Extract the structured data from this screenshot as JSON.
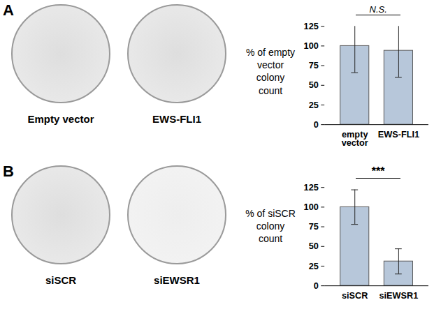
{
  "chart_data": [
    {
      "type": "bar",
      "panel": "A",
      "image_labels": [
        "Empty vector",
        "EWS-FLI1"
      ],
      "y_label": "% of empty vector colony count",
      "categories": [
        "empty vector",
        "EWS-FLI1"
      ],
      "values": [
        100,
        94
      ],
      "errors": [
        34,
        34
      ],
      "significance": "N.S.",
      "color": "#b7c7da",
      "ylim": [
        0,
        125
      ],
      "yticks": [
        0,
        25,
        50,
        75,
        100,
        125
      ]
    },
    {
      "type": "bar",
      "panel": "B",
      "image_labels": [
        "siSCR",
        "siEWSR1"
      ],
      "y_label": "% of siSCR colony count",
      "categories": [
        "siSCR",
        "siEWSR1"
      ],
      "values": [
        100,
        31
      ],
      "errors": [
        22,
        16
      ],
      "significance": "***",
      "color": "#b7c7da",
      "ylim": [
        0,
        125
      ],
      "yticks": [
        0,
        25,
        50,
        75,
        100,
        125
      ]
    }
  ]
}
